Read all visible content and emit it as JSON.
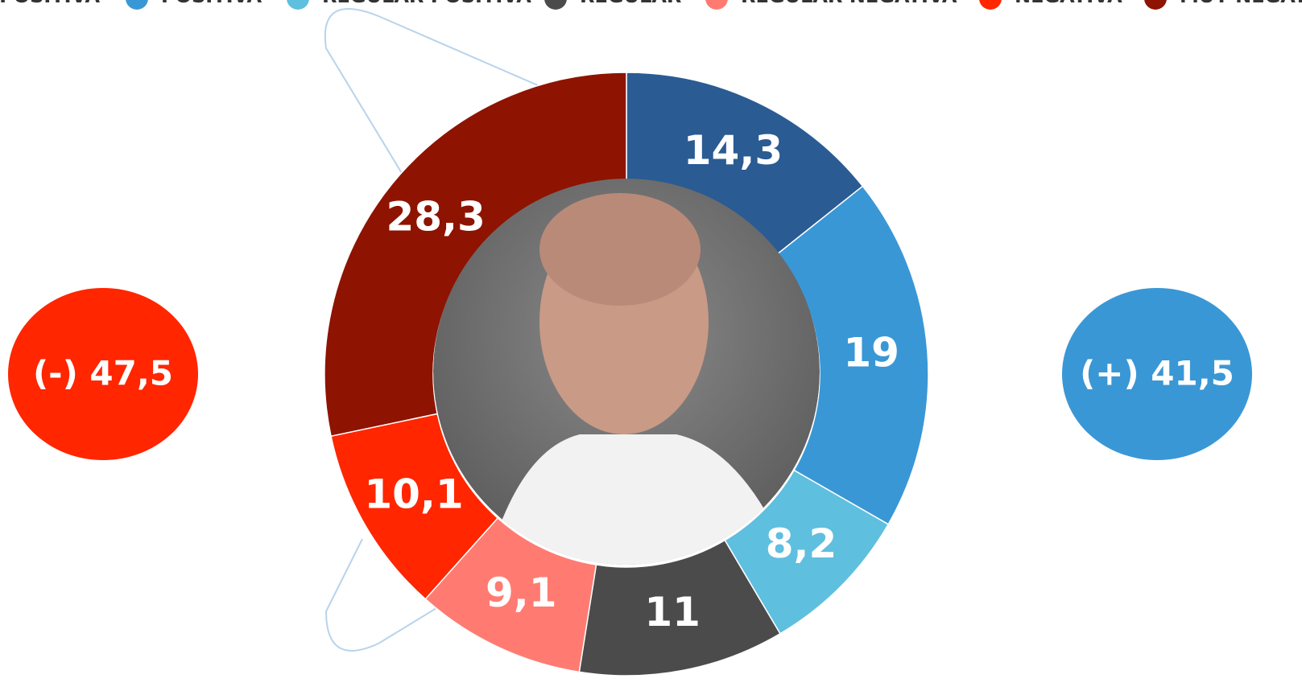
{
  "chart_data": {
    "type": "donut",
    "categories": [
      "MUY POSITIVA",
      "POSITIVA",
      "REGULAR POSITIVA",
      "REGULAR",
      "REGULAR NEGATIVA",
      "NEGATIVA",
      "MUY NEGATIVA"
    ],
    "values": [
      14.3,
      19,
      8.2,
      11,
      9.1,
      10.1,
      28.3
    ],
    "value_labels": [
      "14,3",
      "19",
      "8,2",
      "11",
      "9,1",
      "10,1",
      "28,3"
    ],
    "colors": [
      "#2a5b93",
      "#3a97d5",
      "#5fbfdf",
      "#4b4b4b",
      "#ff7b72",
      "#ff2600",
      "#8e1300"
    ],
    "annotations": [
      {
        "value": 47.5,
        "label": "(-) 47,5",
        "color": "#ff2600"
      },
      {
        "value": 41.5,
        "label": "(+) 41,5",
        "color": "#3a97d5"
      }
    ]
  }
}
